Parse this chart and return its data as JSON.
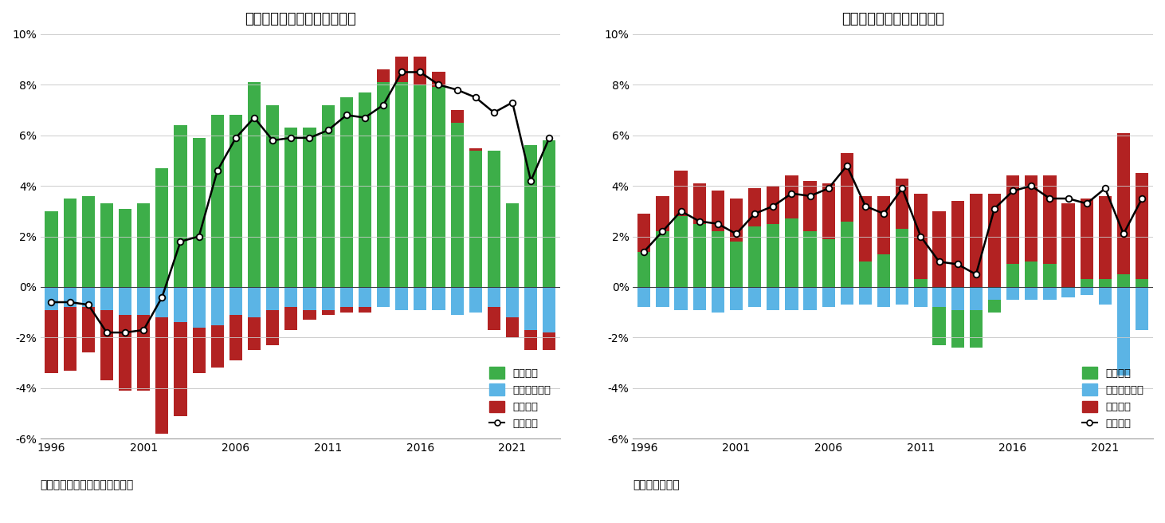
{
  "title1": "図表８　経常収支（ドイツ）",
  "title2": "図表９　経常収支（日本）",
  "source1": "（資料）　ドイツ連邦準備銀行",
  "source2": "（資料）財務省",
  "legend_trade": "貲易収支",
  "legend_service": "サービス収支",
  "legend_income": "所得収支",
  "legend_current": "経常収支",
  "years": [
    1996,
    1997,
    1998,
    1999,
    2000,
    2001,
    2002,
    2003,
    2004,
    2005,
    2006,
    2007,
    2008,
    2009,
    2010,
    2011,
    2012,
    2013,
    2014,
    2015,
    2016,
    2017,
    2018,
    2019,
    2020,
    2021,
    2022,
    2023
  ],
  "germany": {
    "trade": [
      3.0,
      3.5,
      3.6,
      3.3,
      3.1,
      3.3,
      4.7,
      6.4,
      5.9,
      6.8,
      6.8,
      8.1,
      7.2,
      6.3,
      6.3,
      7.2,
      7.5,
      7.7,
      8.1,
      8.1,
      8.0,
      7.9,
      6.5,
      5.4,
      5.4,
      3.3,
      5.6,
      5.8
    ],
    "service": [
      -0.9,
      -0.8,
      -0.8,
      -0.9,
      -1.1,
      -1.1,
      -1.2,
      -1.4,
      -1.6,
      -1.5,
      -1.1,
      -1.2,
      -0.9,
      -0.8,
      -0.9,
      -0.9,
      -0.8,
      -0.8,
      -0.8,
      -0.9,
      -0.9,
      -0.9,
      -1.1,
      -1.0,
      -0.8,
      -1.2,
      -1.7,
      -1.8
    ],
    "income": [
      -2.5,
      -2.5,
      -1.8,
      -2.8,
      -3.0,
      -3.0,
      -4.6,
      -3.7,
      -1.8,
      -1.7,
      -1.8,
      -1.3,
      -1.4,
      -0.9,
      -0.4,
      -0.2,
      -0.2,
      -0.2,
      0.5,
      1.0,
      1.1,
      0.6,
      0.5,
      0.1,
      -0.9,
      -0.8,
      -0.8,
      -0.7
    ],
    "current": [
      -0.6,
      -0.6,
      -0.7,
      -1.8,
      -1.8,
      -1.7,
      -0.4,
      1.8,
      2.0,
      4.6,
      5.9,
      6.7,
      5.8,
      5.9,
      5.9,
      6.2,
      6.8,
      6.7,
      7.2,
      8.5,
      8.5,
      8.0,
      7.8,
      7.5,
      6.9,
      7.3,
      4.2,
      5.9
    ]
  },
  "japan": {
    "trade": [
      1.4,
      2.2,
      2.8,
      2.5,
      2.2,
      1.8,
      2.4,
      2.5,
      2.7,
      2.2,
      1.9,
      2.6,
      1.0,
      1.3,
      2.3,
      0.3,
      -1.5,
      -1.5,
      -1.5,
      -0.5,
      0.9,
      1.0,
      0.9,
      0.0,
      0.3,
      0.3,
      0.5,
      0.3
    ],
    "service": [
      -0.8,
      -0.8,
      -0.9,
      -0.9,
      -1.0,
      -0.9,
      -0.8,
      -0.9,
      -0.9,
      -0.9,
      -0.8,
      -0.7,
      -0.7,
      -0.8,
      -0.7,
      -0.8,
      -0.8,
      -0.9,
      -0.9,
      -0.5,
      -0.5,
      -0.5,
      -0.5,
      -0.4,
      -0.3,
      -0.7,
      -3.5,
      -1.7
    ],
    "income": [
      1.5,
      1.4,
      1.8,
      1.6,
      1.6,
      1.7,
      1.5,
      1.5,
      1.7,
      2.0,
      2.2,
      2.7,
      2.6,
      2.3,
      2.0,
      3.4,
      3.0,
      3.4,
      3.7,
      3.7,
      3.5,
      3.4,
      3.5,
      3.3,
      3.2,
      3.3,
      5.6,
      4.2
    ],
    "current": [
      1.4,
      2.2,
      3.0,
      2.6,
      2.5,
      2.1,
      2.9,
      3.2,
      3.7,
      3.6,
      3.9,
      4.8,
      3.2,
      2.9,
      3.9,
      2.0,
      1.0,
      0.9,
      0.5,
      3.1,
      3.8,
      4.0,
      3.5,
      3.5,
      3.3,
      3.9,
      2.1,
      3.5
    ]
  },
  "color_trade": "#3dae49",
  "color_service": "#5bb4e5",
  "color_income": "#b22222",
  "color_current": "#000000",
  "ylim": [
    -6,
    10
  ],
  "yticks": [
    -6,
    -4,
    -2,
    0,
    2,
    4,
    6,
    8,
    10
  ],
  "ytick_labels": [
    "-6%",
    "-4%",
    "-2%",
    "0%",
    "2%",
    "4%",
    "6%",
    "8%",
    "10%"
  ]
}
